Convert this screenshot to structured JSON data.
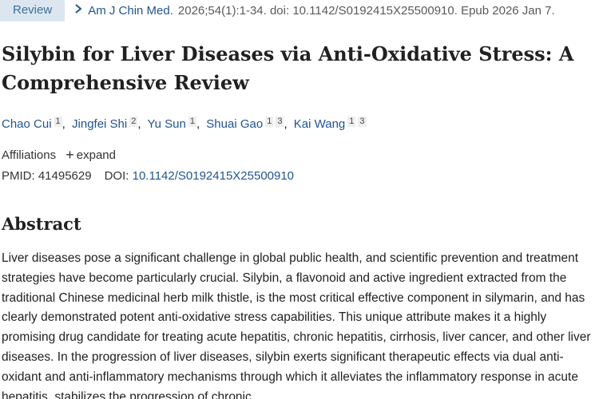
{
  "header": {
    "publication_type": "Review",
    "journal": "Am J Chin Med.",
    "citation_rest": "2026;54(1):1-34. doi: 10.1142/S0192415X25500910. Epub 2026 Jan 7."
  },
  "article": {
    "title": "Silybin for Liver Diseases via Anti-Oxidative Stress: A Comprehensive Review",
    "authors": [
      {
        "name": "Chao Cui",
        "affiliations": [
          "1"
        ]
      },
      {
        "name": "Jingfei Shi",
        "affiliations": [
          "2"
        ]
      },
      {
        "name": "Yu Sun",
        "affiliations": [
          "1"
        ]
      },
      {
        "name": "Shuai Gao",
        "affiliations": [
          "1",
          "3"
        ]
      },
      {
        "name": "Kai Wang",
        "affiliations": [
          "1",
          "3"
        ]
      }
    ],
    "affiliations_label": "Affiliations",
    "expand_label": "expand",
    "pmid_label": "PMID:",
    "pmid": "41495629",
    "doi_label": "DOI:",
    "doi": "10.1142/S0192415X25500910"
  },
  "abstract": {
    "heading": "Abstract",
    "text": "Liver diseases pose a significant challenge in global public health, and scientific prevention and treatment strategies have become particularly crucial. Silybin, a flavonoid and active ingredient extracted from the traditional Chinese medicinal herb milk thistle, is the most critical effective component in silymarin, and has clearly demonstrated potent anti-oxidative stress capabilities. This unique attribute makes it a highly promising drug candidate for treating acute hepatitis, chronic hepatitis, cirrhosis, liver cancer, and other liver diseases. In the progression of liver diseases, silybin exerts significant therapeutic effects via dual anti-oxidant and anti-inflammatory mechanisms through which it alleviates the inflammatory response in acute hepatitis, stabilizes the progression of chronic"
  },
  "icons": {
    "chevron": "chevron-right-icon",
    "expand": "plus-icon"
  },
  "colors": {
    "link": "#205493",
    "badge_bg": "#dbe6f0",
    "badge_text": "#3a6f9c"
  }
}
